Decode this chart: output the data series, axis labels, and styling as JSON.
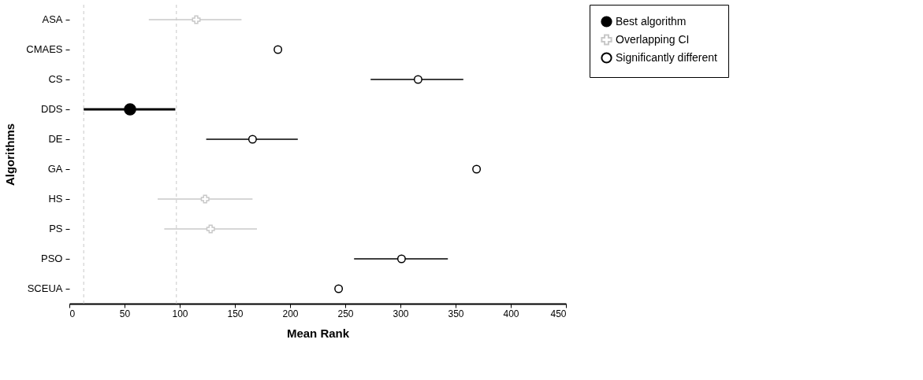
{
  "chart_data": {
    "type": "scatter",
    "xlabel": "Mean Rank",
    "ylabel": "Algorithms",
    "orientation": "horizontal",
    "categories": [
      "ASA",
      "CMAES",
      "CS",
      "DDS",
      "DE",
      "GA",
      "HS",
      "PS",
      "PSO",
      "SCEUA"
    ],
    "series": [
      {
        "name": "Best algorithm",
        "color": "#000000",
        "marker": "circle",
        "values": [
          null,
          null,
          null,
          55,
          null,
          null,
          null,
          null,
          null,
          null
        ],
        "errors": [
          null,
          null,
          null,
          [
            13,
            96
          ],
          null,
          null,
          null,
          null,
          null,
          null
        ]
      },
      {
        "name": "Overlapping CI",
        "color": "#c8c8c8",
        "marker": "cross",
        "values": [
          115,
          null,
          null,
          null,
          null,
          null,
          123,
          128,
          null,
          null
        ],
        "errors": [
          [
            72,
            156
          ],
          null,
          null,
          null,
          null,
          null,
          [
            80,
            166
          ],
          [
            86,
            170
          ],
          null,
          null
        ]
      },
      {
        "name": "Significantly different",
        "color": "#000000",
        "marker": "circle",
        "values": [
          null,
          189,
          316,
          null,
          166,
          369,
          null,
          null,
          301,
          244
        ],
        "errors": [
          null,
          null,
          [
            273,
            357
          ],
          null,
          [
            124,
            207
          ],
          null,
          null,
          null,
          [
            258,
            343
          ],
          null
        ]
      }
    ],
    "xlim": [
      0,
      450
    ],
    "xticks": [
      0,
      50,
      100,
      150,
      200,
      250,
      300,
      350,
      400,
      450
    ],
    "ref_lines": [
      {
        "axis": "x",
        "value": 13,
        "color": "#c8c8c8",
        "line_style": "dashed"
      },
      {
        "axis": "x",
        "value": 97,
        "color": "#c8c8c8",
        "line_style": "dashed"
      }
    ],
    "grid": false,
    "legend": "right"
  }
}
